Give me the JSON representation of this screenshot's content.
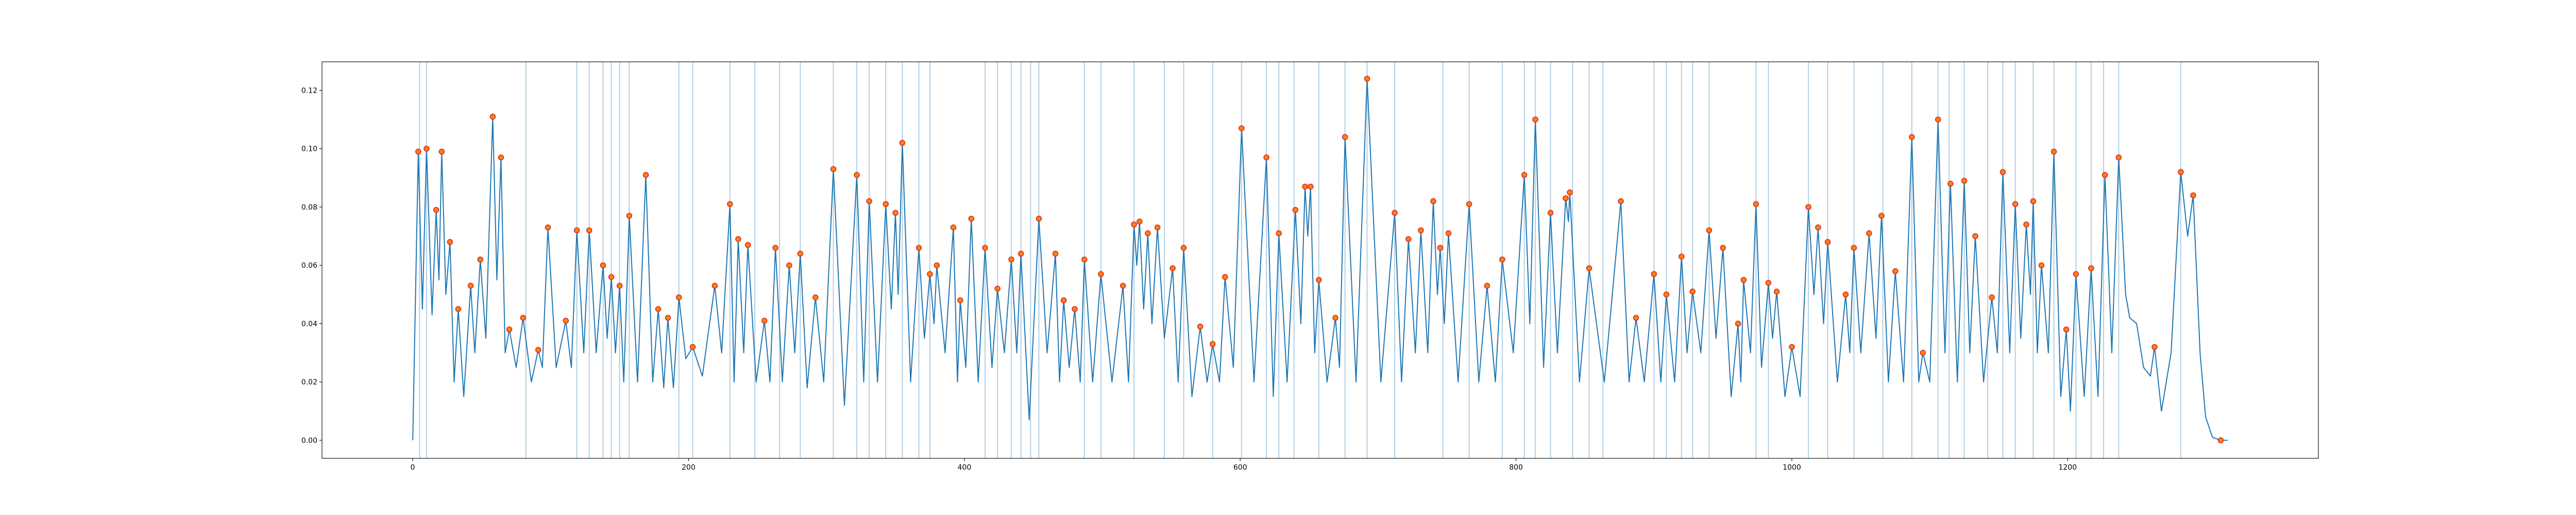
{
  "chart_data": {
    "type": "line",
    "xlim": [
      -65.8,
      1381.8
    ],
    "ylim": [
      -0.0062,
      0.1298
    ],
    "xticks": [
      0,
      200,
      400,
      600,
      800,
      1000,
      1200
    ],
    "yticks": [
      {
        "value": 0,
        "label": "0.00"
      },
      {
        "value": 0.02,
        "label": "0.02"
      },
      {
        "value": 0.04,
        "label": "0.04"
      },
      {
        "value": 0.06,
        "label": "0.06"
      },
      {
        "value": 0.08,
        "label": "0.08"
      },
      {
        "value": 0.1,
        "label": "0.10"
      },
      {
        "value": 0.12,
        "label": "0.12"
      }
    ],
    "series": [
      {
        "type": "line",
        "color": "#1f77b4",
        "x": [
          0,
          4,
          7,
          10,
          14,
          17,
          19,
          21,
          24,
          27,
          30,
          33,
          37,
          42,
          45,
          49,
          53,
          58,
          61,
          64,
          67,
          70,
          75,
          80,
          86,
          91,
          94,
          98,
          104,
          111,
          115,
          119,
          124,
          128,
          133,
          138,
          141,
          144,
          147,
          150,
          153,
          157,
          163,
          169,
          174,
          178,
          182,
          185,
          189,
          193,
          198,
          203,
          210,
          219,
          224,
          230,
          233,
          236,
          240,
          243,
          249,
          255,
          259,
          263,
          268,
          273,
          277,
          281,
          286,
          292,
          298,
          305,
          313,
          322,
          327,
          331,
          337,
          343,
          347,
          350,
          352,
          355,
          361,
          367,
          371,
          375,
          378,
          380,
          386,
          392,
          395,
          397,
          401,
          405,
          410,
          415,
          420,
          424,
          429,
          434,
          438,
          441,
          447,
          454,
          460,
          466,
          469,
          472,
          476,
          480,
          484,
          487,
          493,
          499,
          507,
          515,
          519,
          523,
          525,
          527,
          530,
          533,
          536,
          540,
          545,
          551,
          555,
          559,
          565,
          571,
          576,
          580,
          585,
          589,
          595,
          601,
          610,
          619,
          624,
          628,
          634,
          640,
          644,
          647,
          649,
          651,
          654,
          657,
          663,
          669,
          672,
          676,
          684,
          692,
          702,
          712,
          717,
          722,
          727,
          731,
          736,
          740,
          743,
          745,
          748,
          751,
          758,
          766,
          773,
          779,
          785,
          790,
          798,
          806,
          810,
          814,
          820,
          825,
          830,
          836,
          838,
          839,
          846,
          853,
          864,
          876,
          882,
          887,
          893,
          900,
          905,
          909,
          915,
          920,
          924,
          928,
          934,
          940,
          945,
          950,
          956,
          961,
          963,
          965,
          970,
          974,
          978,
          983,
          986,
          989,
          995,
          1000,
          1006,
          1012,
          1016,
          1019,
          1023,
          1026,
          1033,
          1039,
          1042,
          1045,
          1050,
          1056,
          1061,
          1065,
          1070,
          1075,
          1081,
          1087,
          1092,
          1095,
          1100,
          1106,
          1111,
          1115,
          1120,
          1125,
          1129,
          1133,
          1139,
          1145,
          1149,
          1153,
          1158,
          1162,
          1166,
          1170,
          1173,
          1175,
          1178,
          1181,
          1186,
          1190,
          1195,
          1199,
          1202,
          1206,
          1212,
          1217,
          1222,
          1227,
          1232,
          1237,
          1242,
          1245,
          1250,
          1255,
          1260,
          1263,
          1268,
          1275,
          1282,
          1287,
          1291,
          1296,
          1300,
          1305,
          1311,
          1316
        ],
        "values": [
          0,
          0.099,
          0.045,
          0.1,
          0.043,
          0.079,
          0.055,
          0.099,
          0.05,
          0.068,
          0.02,
          0.045,
          0.015,
          0.053,
          0.03,
          0.062,
          0.035,
          0.111,
          0.055,
          0.097,
          0.03,
          0.038,
          0.025,
          0.042,
          0.02,
          0.031,
          0.025,
          0.073,
          0.025,
          0.041,
          0.025,
          0.072,
          0.03,
          0.072,
          0.03,
          0.06,
          0.035,
          0.056,
          0.03,
          0.053,
          0.02,
          0.077,
          0.02,
          0.091,
          0.02,
          0.045,
          0.018,
          0.042,
          0.018,
          0.049,
          0.028,
          0.032,
          0.022,
          0.053,
          0.03,
          0.081,
          0.02,
          0.069,
          0.03,
          0.067,
          0.02,
          0.041,
          0.02,
          0.066,
          0.02,
          0.06,
          0.03,
          0.064,
          0.018,
          0.049,
          0.02,
          0.093,
          0.012,
          0.091,
          0.02,
          0.082,
          0.02,
          0.081,
          0.045,
          0.078,
          0.05,
          0.102,
          0.02,
          0.066,
          0.035,
          0.057,
          0.04,
          0.06,
          0.03,
          0.073,
          0.02,
          0.048,
          0.025,
          0.076,
          0.02,
          0.066,
          0.025,
          0.052,
          0.03,
          0.062,
          0.03,
          0.064,
          0.007,
          0.076,
          0.03,
          0.064,
          0.02,
          0.048,
          0.025,
          0.045,
          0.02,
          0.062,
          0.02,
          0.057,
          0.02,
          0.053,
          0.02,
          0.074,
          0.06,
          0.075,
          0.045,
          0.071,
          0.04,
          0.073,
          0.035,
          0.059,
          0.02,
          0.066,
          0.015,
          0.039,
          0.02,
          0.033,
          0.02,
          0.056,
          0.025,
          0.107,
          0.02,
          0.097,
          0.015,
          0.071,
          0.02,
          0.079,
          0.04,
          0.087,
          0.07,
          0.087,
          0.03,
          0.055,
          0.02,
          0.042,
          0.025,
          0.104,
          0.02,
          0.124,
          0.02,
          0.078,
          0.02,
          0.069,
          0.03,
          0.072,
          0.03,
          0.082,
          0.05,
          0.066,
          0.04,
          0.071,
          0.02,
          0.081,
          0.02,
          0.053,
          0.02,
          0.062,
          0.03,
          0.091,
          0.04,
          0.11,
          0.025,
          0.078,
          0.03,
          0.083,
          0.075,
          0.085,
          0.02,
          0.059,
          0.02,
          0.082,
          0.02,
          0.042,
          0.02,
          0.057,
          0.02,
          0.05,
          0.02,
          0.063,
          0.03,
          0.051,
          0.03,
          0.072,
          0.035,
          0.066,
          0.015,
          0.04,
          0.02,
          0.055,
          0.03,
          0.081,
          0.025,
          0.054,
          0.035,
          0.051,
          0.015,
          0.032,
          0.015,
          0.08,
          0.05,
          0.073,
          0.04,
          0.068,
          0.02,
          0.05,
          0.03,
          0.066,
          0.03,
          0.071,
          0.035,
          0.077,
          0.02,
          0.058,
          0.02,
          0.104,
          0.02,
          0.03,
          0.02,
          0.11,
          0.03,
          0.088,
          0.02,
          0.089,
          0.03,
          0.07,
          0.02,
          0.049,
          0.03,
          0.092,
          0.03,
          0.081,
          0.035,
          0.074,
          0.05,
          0.082,
          0.03,
          0.06,
          0.03,
          0.099,
          0.015,
          0.038,
          0.01,
          0.057,
          0.015,
          0.059,
          0.015,
          0.091,
          0.03,
          0.097,
          0.05,
          0.042,
          0.04,
          0.025,
          0.022,
          0.032,
          0.01,
          0.03,
          0.092,
          0.07,
          0.084,
          0.03,
          0.008,
          0.001,
          0,
          0
        ]
      },
      {
        "type": "scatter",
        "color": "#ff7f0e",
        "x": [
          4,
          10,
          17,
          21,
          27,
          33,
          42,
          49,
          58,
          64,
          70,
          80,
          91,
          98,
          111,
          119,
          128,
          138,
          144,
          150,
          157,
          169,
          178,
          185,
          193,
          203,
          219,
          230,
          236,
          243,
          255,
          263,
          273,
          281,
          292,
          305,
          322,
          331,
          343,
          350,
          355,
          367,
          375,
          380,
          392,
          397,
          405,
          415,
          424,
          434,
          441,
          454,
          466,
          472,
          480,
          487,
          499,
          515,
          523,
          527,
          533,
          540,
          551,
          559,
          571,
          580,
          589,
          601,
          619,
          628,
          640,
          647,
          651,
          657,
          669,
          676,
          692,
          712,
          722,
          731,
          740,
          745,
          751,
          766,
          779,
          790,
          806,
          814,
          825,
          836,
          839,
          853,
          876,
          887,
          900,
          909,
          920,
          928,
          940,
          950,
          961,
          965,
          974,
          983,
          989,
          1000,
          1012,
          1019,
          1026,
          1039,
          1045,
          1056,
          1065,
          1075,
          1087,
          1095,
          1106,
          1115,
          1125,
          1133,
          1145,
          1153,
          1162,
          1170,
          1175,
          1181,
          1190,
          1199,
          1206,
          1217,
          1227,
          1237,
          1263,
          1282,
          1291,
          1311
        ],
        "values": [
          0.099,
          0.1,
          0.079,
          0.099,
          0.068,
          0.045,
          0.053,
          0.062,
          0.111,
          0.097,
          0.038,
          0.042,
          0.031,
          0.073,
          0.041,
          0.072,
          0.072,
          0.06,
          0.056,
          0.053,
          0.077,
          0.091,
          0.045,
          0.042,
          0.049,
          0.032,
          0.053,
          0.081,
          0.069,
          0.067,
          0.041,
          0.066,
          0.06,
          0.064,
          0.049,
          0.093,
          0.091,
          0.082,
          0.081,
          0.078,
          0.102,
          0.066,
          0.057,
          0.06,
          0.073,
          0.048,
          0.076,
          0.066,
          0.052,
          0.062,
          0.064,
          0.076,
          0.064,
          0.048,
          0.045,
          0.062,
          0.057,
          0.053,
          0.074,
          0.075,
          0.071,
          0.073,
          0.059,
          0.066,
          0.039,
          0.033,
          0.056,
          0.107,
          0.097,
          0.071,
          0.079,
          0.087,
          0.087,
          0.055,
          0.042,
          0.104,
          0.124,
          0.078,
          0.069,
          0.072,
          0.082,
          0.066,
          0.071,
          0.081,
          0.053,
          0.062,
          0.091,
          0.11,
          0.078,
          0.083,
          0.085,
          0.059,
          0.082,
          0.042,
          0.057,
          0.05,
          0.063,
          0.051,
          0.072,
          0.066,
          0.04,
          0.055,
          0.081,
          0.054,
          0.051,
          0.032,
          0.08,
          0.073,
          0.068,
          0.05,
          0.066,
          0.071,
          0.077,
          0.058,
          0.104,
          0.03,
          0.11,
          0.088,
          0.089,
          0.07,
          0.049,
          0.092,
          0.081,
          0.074,
          0.082,
          0.06,
          0.099,
          0.038,
          0.057,
          0.059,
          0.091,
          0.097,
          0.032,
          0.092,
          0.084,
          0
        ]
      }
    ],
    "vlines": {
      "color": "#1f77b4",
      "x": [
        5,
        10,
        82,
        119,
        128,
        138,
        144,
        150,
        157,
        193,
        203,
        230,
        248,
        266,
        281,
        305,
        322,
        331,
        343,
        355,
        367,
        375,
        415,
        424,
        434,
        441,
        448,
        454,
        487,
        499,
        523,
        545,
        559,
        580,
        601,
        619,
        628,
        639,
        657,
        676,
        692,
        712,
        747,
        766,
        790,
        806,
        814,
        825,
        841,
        853,
        863,
        900,
        909,
        920,
        928,
        940,
        974,
        983,
        1012,
        1026,
        1045,
        1066,
        1087,
        1106,
        1114,
        1125,
        1142,
        1153,
        1162,
        1175,
        1190,
        1206,
        1217,
        1226,
        1237,
        1282
      ]
    }
  }
}
